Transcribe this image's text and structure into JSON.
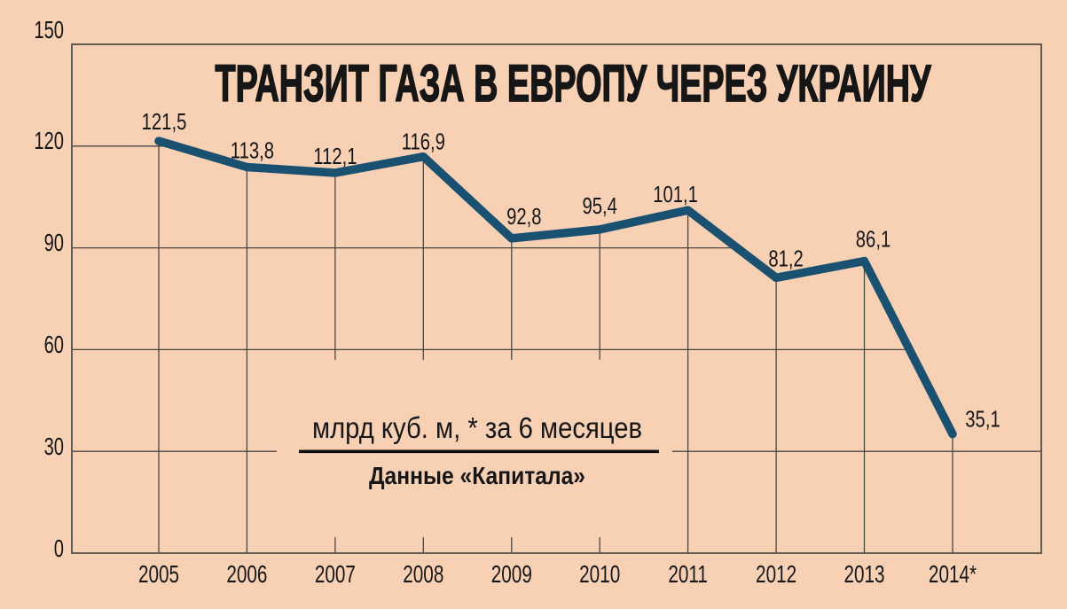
{
  "chart_data": {
    "type": "line",
    "title": "ТРАНЗИТ ГАЗА В ЕВРОПУ ЧЕРЕЗ УКРАИНУ",
    "categories": [
      "2005",
      "2006",
      "2007",
      "2008",
      "2009",
      "2010",
      "2011",
      "2012",
      "2013",
      "2014*"
    ],
    "values": [
      121.5,
      113.8,
      112.1,
      116.9,
      92.8,
      95.4,
      101.1,
      81.2,
      86.1,
      35.1
    ],
    "value_labels": [
      "121,5",
      "113,8",
      "112,1",
      "116,9",
      "92,8",
      "95,4",
      "101,1",
      "81,2",
      "86,1",
      "35,1"
    ],
    "unit_note": "млрд куб. м, * за 6 месяцев",
    "source": "Данные «Капитала»",
    "y_ticks": [
      "0",
      "30",
      "60",
      "90",
      "120",
      "150"
    ],
    "y_tick_values": [
      0,
      30,
      60,
      90,
      120,
      150
    ],
    "ylim": [
      0,
      150
    ],
    "xlabel": "",
    "ylabel": "",
    "legend": "none",
    "grid": "shown-only-below-line",
    "colors": {
      "background": "#f8d1b5",
      "line": "#1b5170",
      "grid": "#4a4742",
      "frame": "#635c52",
      "text": "#161616"
    }
  }
}
